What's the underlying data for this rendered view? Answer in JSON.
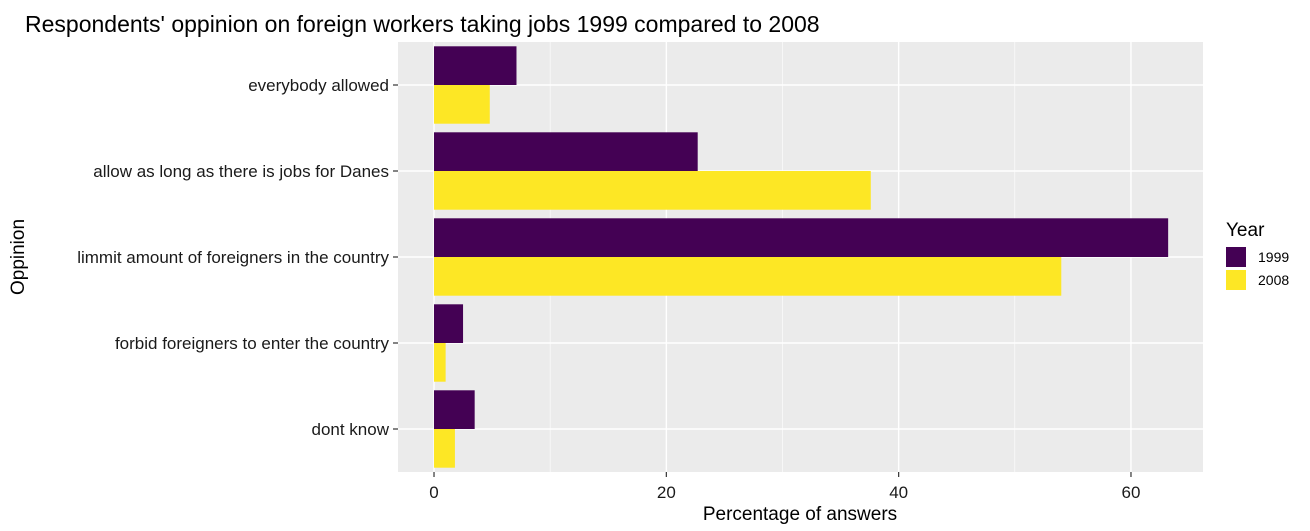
{
  "chart_data": {
    "type": "bar",
    "orientation": "horizontal",
    "title": "Respondents' oppinion on foreign workers taking jobs 1999 compared to 2008",
    "xlabel": "Percentage of answers",
    "ylabel": "Oppinion",
    "xlim": [
      -3.1,
      66.2
    ],
    "xticks": [
      0,
      20,
      40,
      60
    ],
    "grid": true,
    "legend_title": "Year",
    "legend_position": "right",
    "categories": [
      "everybody allowed",
      "allow as long as there is jobs for Danes",
      "limmit amount of foreigners in the country",
      "forbid foreigners to enter the country",
      "dont know"
    ],
    "series": [
      {
        "name": "1999",
        "color": "#440154",
        "values": [
          7.1,
          22.7,
          63.2,
          2.5,
          3.5
        ]
      },
      {
        "name": "2008",
        "color": "#FDE725",
        "values": [
          4.8,
          37.6,
          54.0,
          1.0,
          1.8
        ]
      }
    ],
    "panel_background": "#EBEBEB",
    "grid_color": "#FFFFFF"
  }
}
